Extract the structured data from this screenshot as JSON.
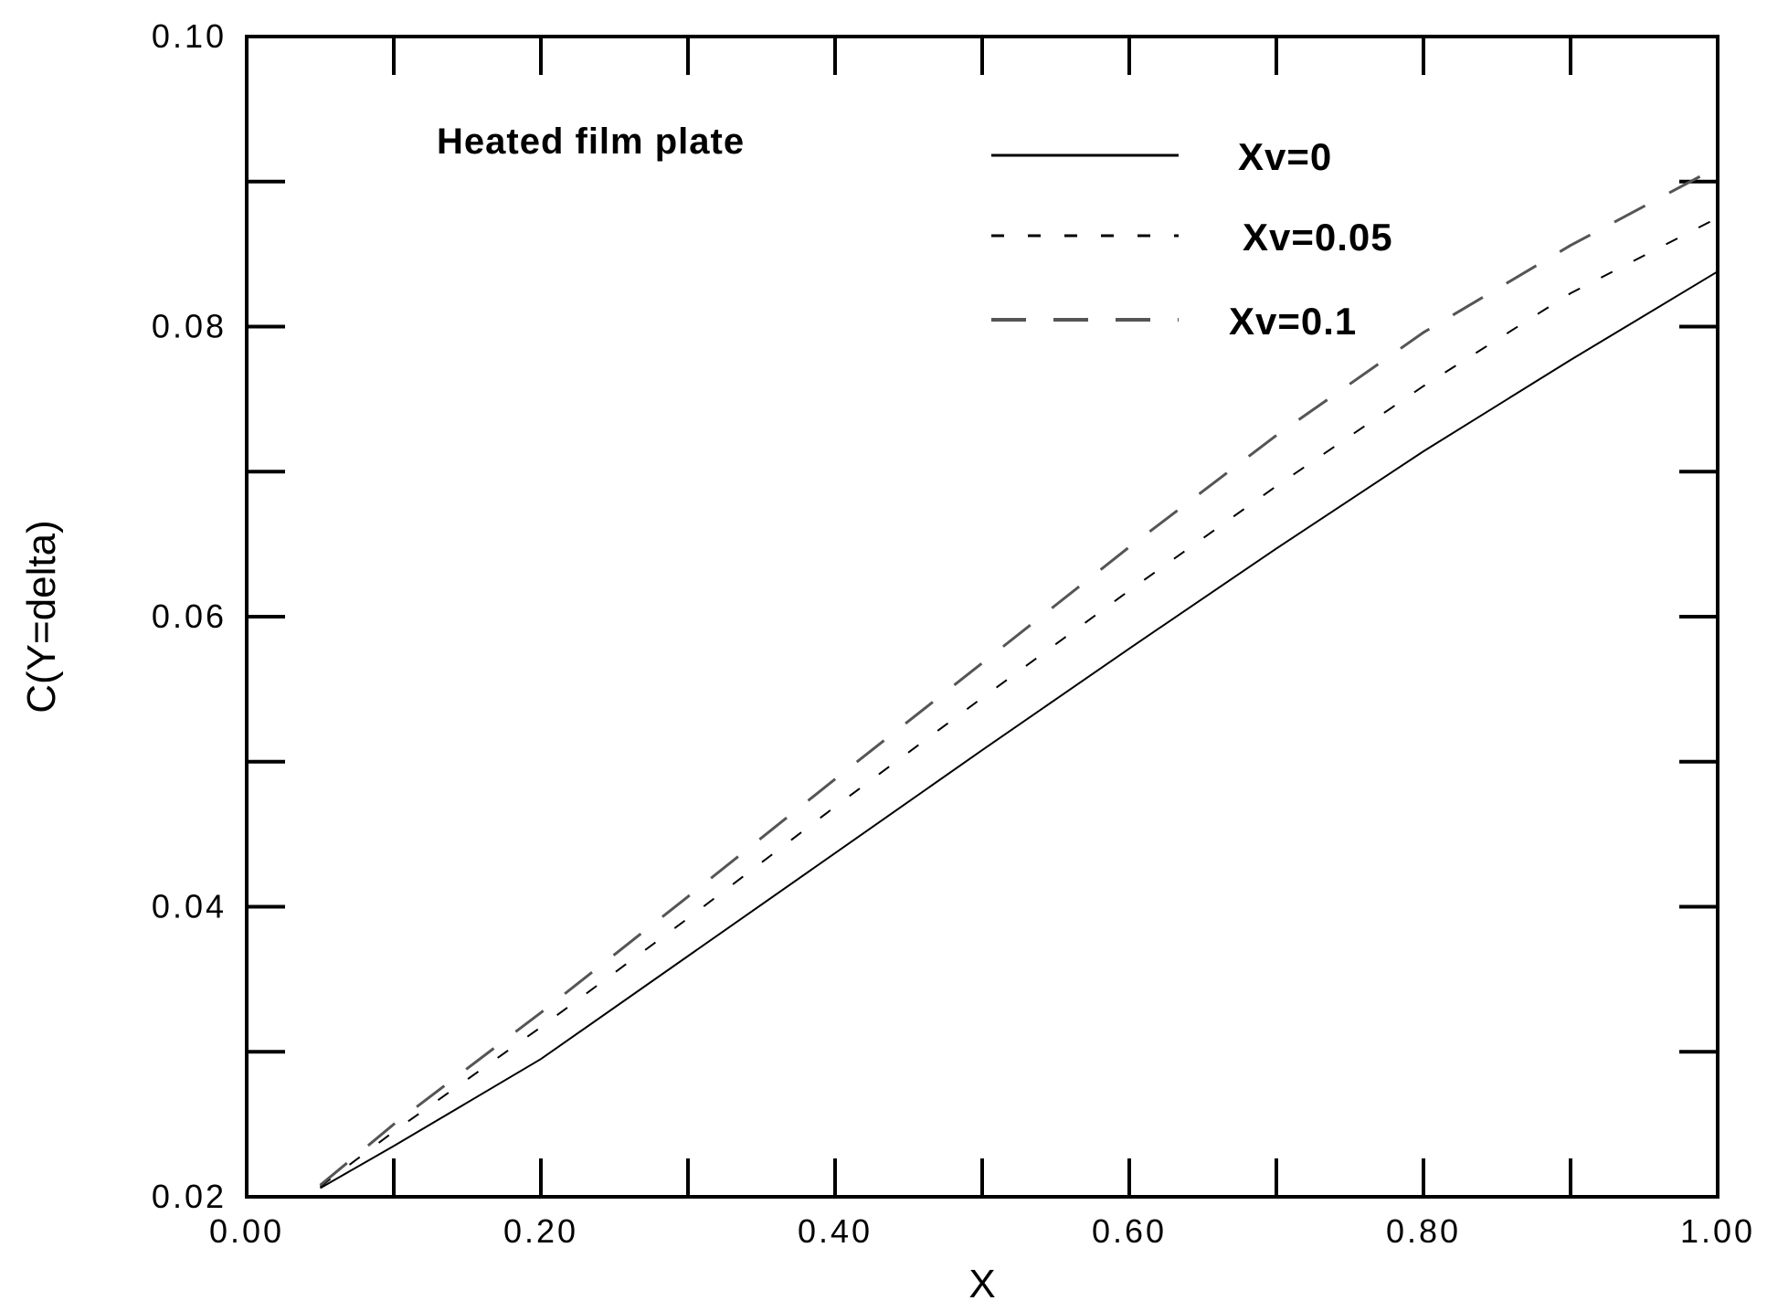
{
  "chart_data": {
    "type": "line",
    "title": "",
    "annotation": "Heated film plate",
    "xlabel": "X",
    "ylabel": "C(Y=delta)",
    "xlim": [
      0.0,
      1.0
    ],
    "ylim": [
      0.02,
      0.1
    ],
    "x_ticks": [
      "0.00",
      "0.20",
      "0.40",
      "0.60",
      "0.80",
      "1.00"
    ],
    "y_ticks": [
      "0.02",
      "0.04",
      "0.06",
      "0.08",
      "0.10"
    ],
    "x_tick_values": [
      0.0,
      0.2,
      0.4,
      0.6,
      0.8,
      1.0
    ],
    "y_tick_values": [
      0.02,
      0.04,
      0.06,
      0.08,
      0.1
    ],
    "x_minor_step": 0.1,
    "y_minor_step": 0.01,
    "grid": false,
    "legend_position": "top-right",
    "series": [
      {
        "name": "Xv=0",
        "style": "solid",
        "color": "#000000",
        "x": [
          0.05,
          0.1,
          0.2,
          0.3,
          0.4,
          0.5,
          0.6,
          0.7,
          0.8,
          0.9,
          1.0
        ],
        "y": [
          0.0206,
          0.0235,
          0.0295,
          0.0366,
          0.0437,
          0.0508,
          0.0578,
          0.0647,
          0.0714,
          0.0777,
          0.0838
        ]
      },
      {
        "name": "Xv=0.05",
        "style": "short-dash",
        "color": "#000000",
        "x": [
          0.05,
          0.1,
          0.2,
          0.3,
          0.4,
          0.5,
          0.6,
          0.7,
          0.8,
          0.9,
          1.0
        ],
        "y": [
          0.0207,
          0.0245,
          0.0317,
          0.0392,
          0.0469,
          0.0544,
          0.0618,
          0.069,
          0.0759,
          0.0823,
          0.0875
        ]
      },
      {
        "name": "Xv=0.1",
        "style": "long-dash",
        "color": "#555555",
        "x": [
          0.05,
          0.1,
          0.2,
          0.3,
          0.4,
          0.5,
          0.6,
          0.7,
          0.8,
          0.9,
          1.0
        ],
        "y": [
          0.0208,
          0.025,
          0.0327,
          0.0407,
          0.0488,
          0.0568,
          0.0648,
          0.0725,
          0.0796,
          0.0856,
          0.091
        ]
      }
    ]
  }
}
